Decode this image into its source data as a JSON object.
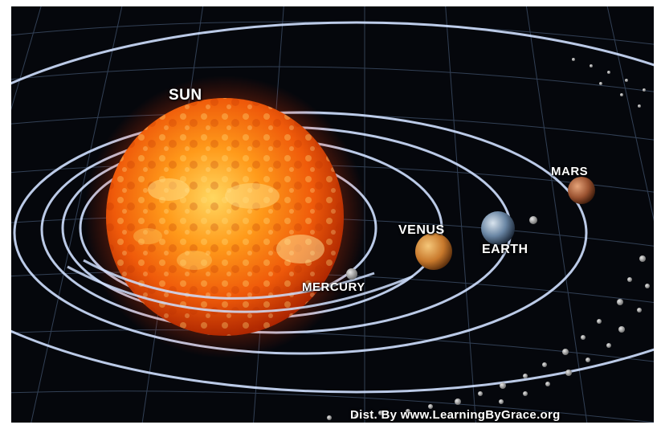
{
  "labels": {
    "sun": "SUN",
    "mercury": "MERCURY",
    "venus": "VENUS",
    "earth": "EARTH",
    "mars": "MARS"
  },
  "credit": "Dist. By www.LearningByGrace.org",
  "colors": {
    "space_background": "#05070c",
    "grid_lines": "#3a4a62",
    "orbit_rings": "#cfe0ff",
    "sun_core": "#ffb020",
    "sun_edge": "#d83a05",
    "label_text": "#ffffff"
  }
}
